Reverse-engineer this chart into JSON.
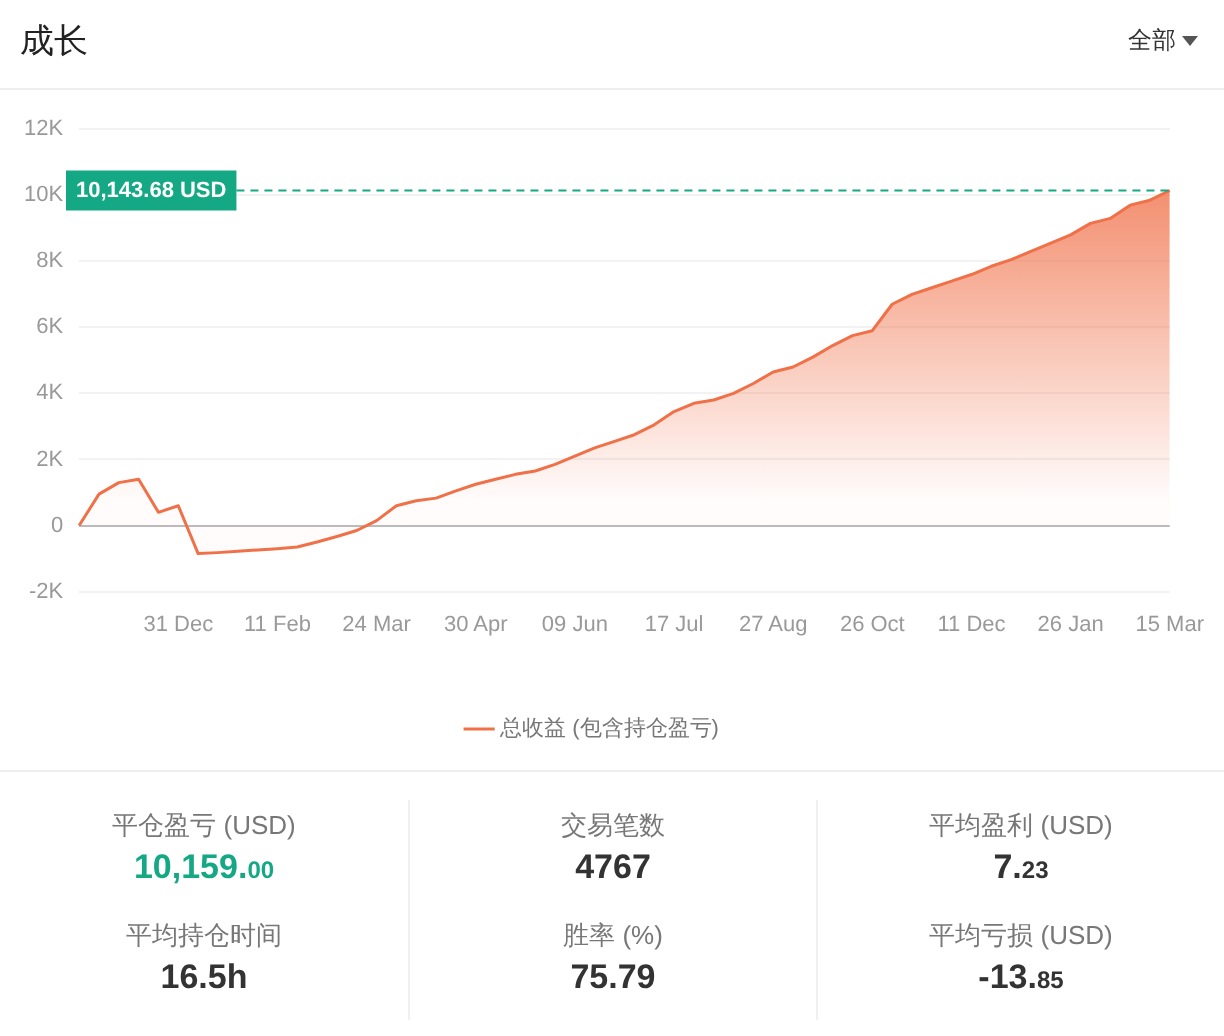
{
  "chart_data": {
    "type": "area",
    "title": "成长",
    "categories": [
      null,
      null,
      null,
      null,
      null,
      "31 Dec",
      null,
      null,
      null,
      null,
      "11 Feb",
      null,
      null,
      null,
      null,
      "24 Mar",
      null,
      null,
      null,
      null,
      "30 Apr",
      null,
      null,
      null,
      null,
      "09 Jun",
      null,
      null,
      null,
      null,
      "17 Jul",
      null,
      null,
      null,
      null,
      "27 Aug",
      null,
      null,
      null,
      null,
      "26 Oct",
      null,
      null,
      null,
      null,
      "11 Dec",
      null,
      null,
      null,
      null,
      "26 Jan",
      null,
      null,
      null,
      null,
      "15 Mar"
    ],
    "series": [
      {
        "name": "总收益 (包含持仓盈亏)",
        "color": "#f07048",
        "values": [
          0,
          950,
          1300,
          1400,
          400,
          600,
          -850,
          -820,
          -780,
          -740,
          -700,
          -650,
          -500,
          -330,
          -150,
          150,
          600,
          750,
          830,
          1050,
          1250,
          1400,
          1550,
          1650,
          1850,
          2100,
          2350,
          2550,
          2750,
          3050,
          3450,
          3700,
          3800,
          4000,
          4300,
          4650,
          4800,
          5100,
          5450,
          5750,
          5900,
          6700,
          7000,
          7200,
          7400,
          7600,
          7850,
          8050,
          8300,
          8550,
          8800,
          9150,
          9300,
          9700,
          9850,
          10143.68
        ]
      }
    ],
    "ylim": [
      -2000,
      12000
    ],
    "yticks": [
      {
        "value": -2000,
        "label": "-2K"
      },
      {
        "value": 0,
        "label": "0"
      },
      {
        "value": 2000,
        "label": "2K"
      },
      {
        "value": 4000,
        "label": "4K"
      },
      {
        "value": 6000,
        "label": "6K"
      },
      {
        "value": 8000,
        "label": "8K"
      },
      {
        "value": 10000,
        "label": "10K"
      },
      {
        "value": 12000,
        "label": "12K"
      }
    ],
    "grid": "y",
    "legend": "bottom",
    "marker": "none",
    "ref_lines": [
      {
        "axis": "y",
        "value": 10143.68,
        "label": "10,143.68 USD",
        "color": "#15a884",
        "line_style": "dashed"
      }
    ],
    "annotations": [
      "全部",
      "平仓盈亏 (USD)",
      "10,159.00",
      "交易笔数",
      "4767",
      "平均盈利 (USD)",
      "7.23",
      "平均持仓时间",
      "16.5h",
      "胜率 (%)",
      "75.79",
      "平均亏损 (USD)",
      "-13.85"
    ]
  }
}
